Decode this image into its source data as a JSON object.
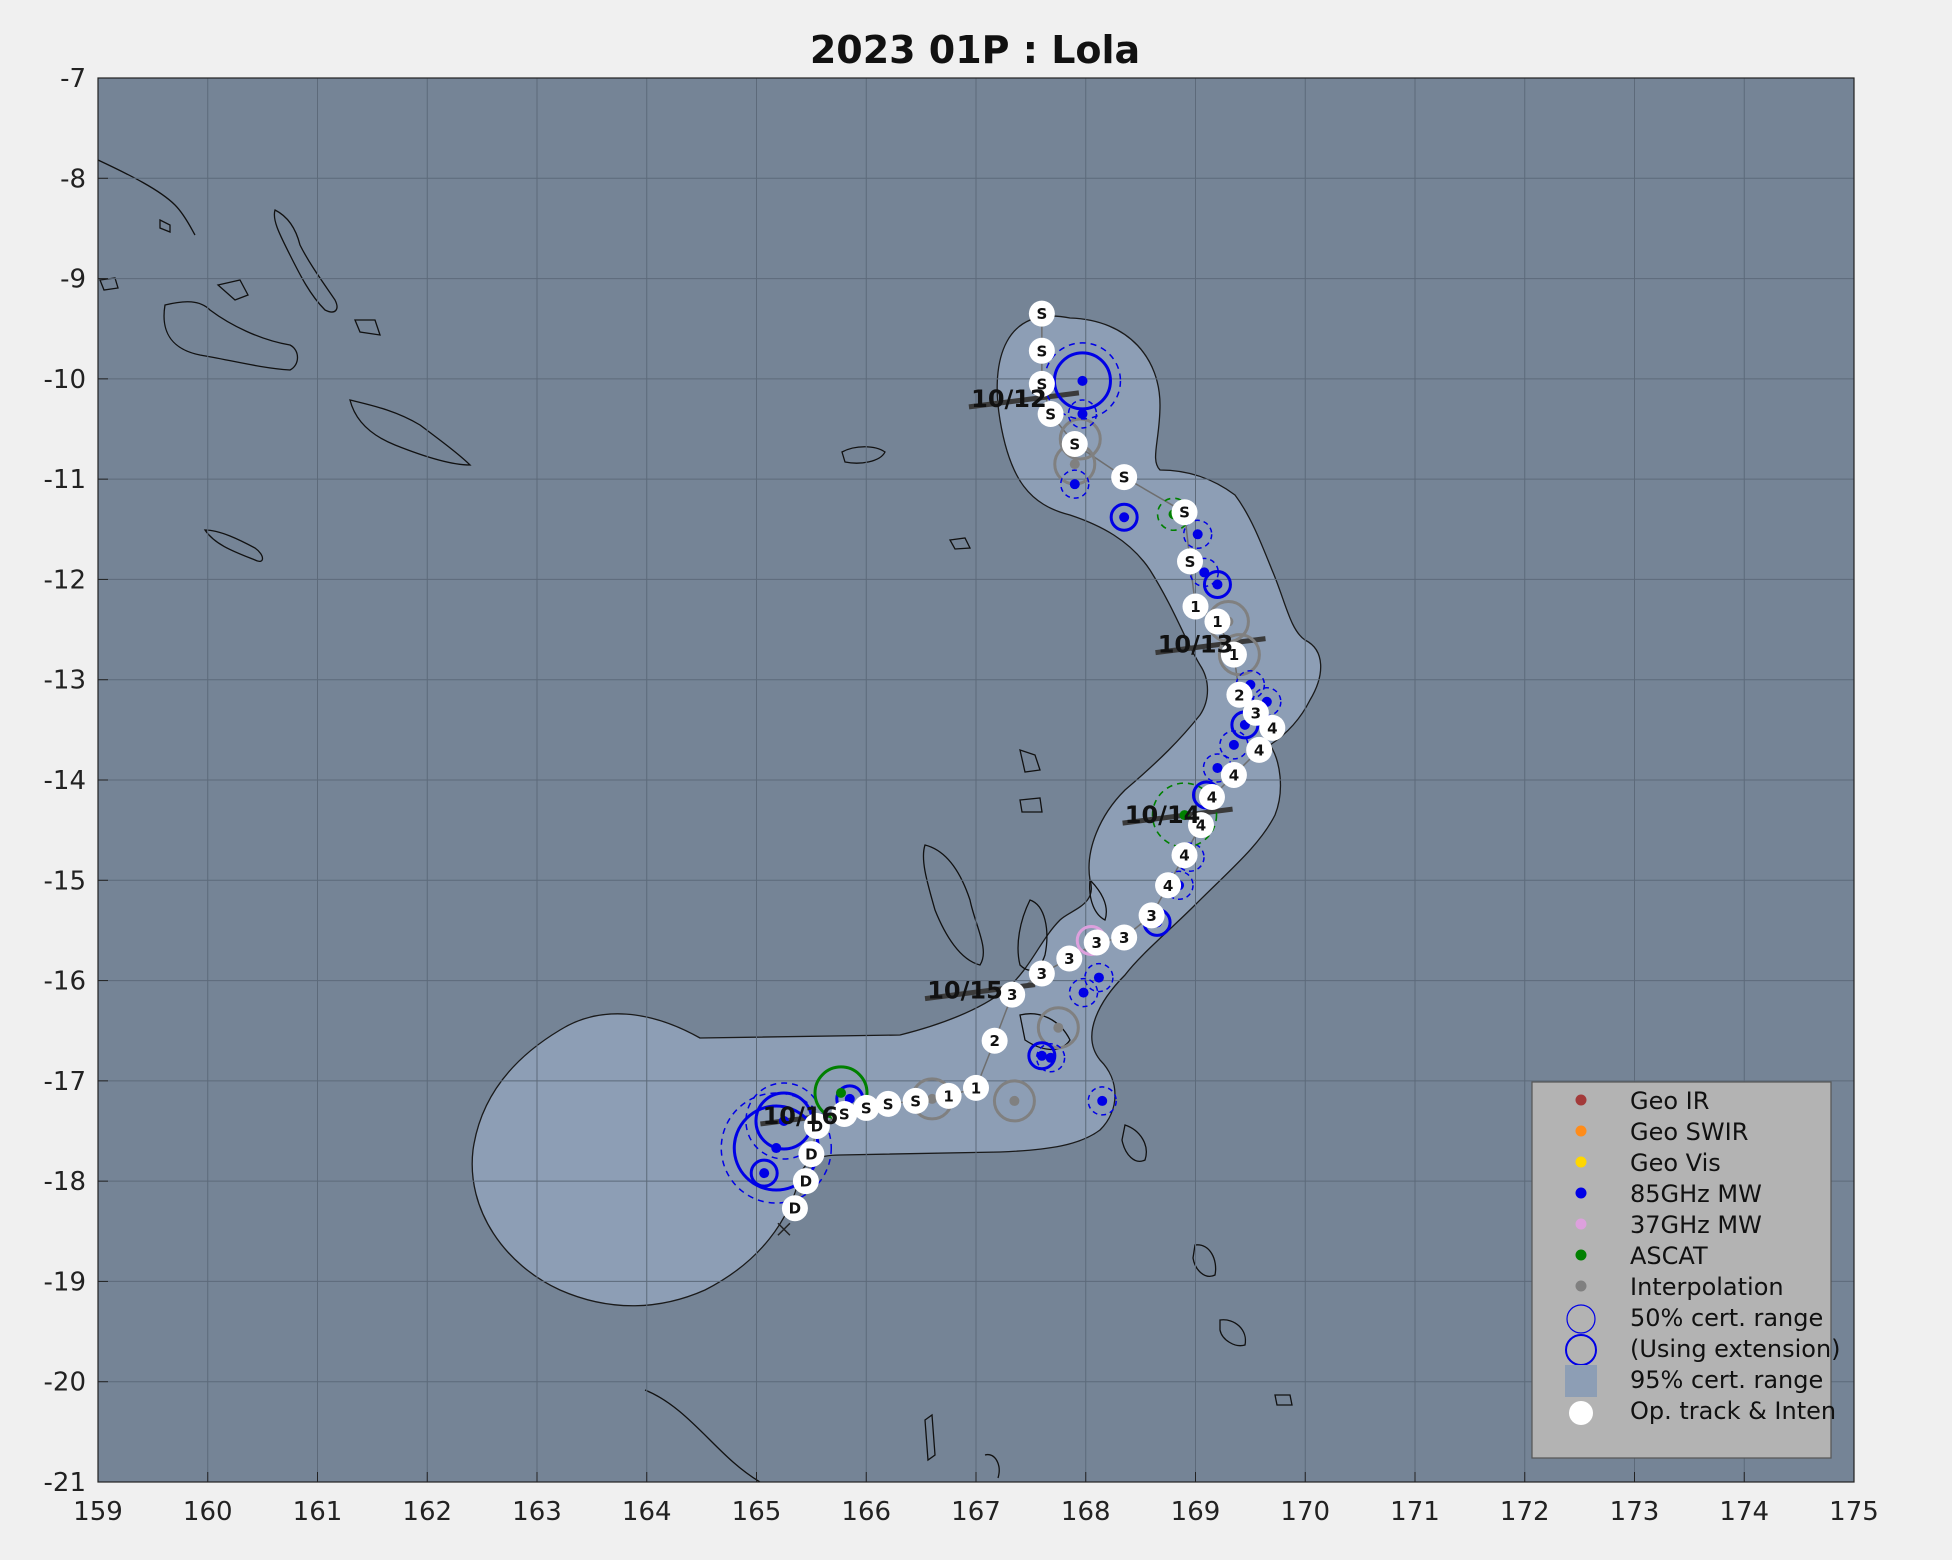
{
  "title": "2023  01P :  Lola",
  "colors": {
    "background": "#f0f0f0",
    "ocean": "#758496",
    "cert95": "#8d9eb5",
    "geo_ir": "#a33a3a",
    "geo_swir": "#ff8c1a",
    "geo_vis": "#ffd700",
    "mw85": "#0000e6",
    "mw37": "#dda0dd",
    "ascat": "#008000",
    "interp": "#808080",
    "legend_bg": "#b3b3b3"
  },
  "axes": {
    "x_ticks": [
      "159",
      "160",
      "161",
      "162",
      "163",
      "164",
      "165",
      "166",
      "167",
      "168",
      "169",
      "170",
      "171",
      "172",
      "173",
      "174",
      "175"
    ],
    "y_ticks": [
      "-7",
      "-8",
      "-9",
      "-10",
      "-11",
      "-12",
      "-13",
      "-14",
      "-15",
      "-16",
      "-17",
      "-18",
      "-19",
      "-20",
      "-21"
    ]
  },
  "chart_data": {
    "type": "scatter",
    "title": "2023  01P :  Lola",
    "xlim": [
      159,
      175
    ],
    "ylim": [
      -21,
      -7
    ],
    "grid": true,
    "legend_position": "bottom-right",
    "op_track": [
      {
        "lon": 167.6,
        "lat": -9.35,
        "label": "S"
      },
      {
        "lon": 167.6,
        "lat": -9.72,
        "label": "S"
      },
      {
        "lon": 167.6,
        "lat": -10.05,
        "label": "S"
      },
      {
        "lon": 167.68,
        "lat": -10.35,
        "label": "S"
      },
      {
        "lon": 167.9,
        "lat": -10.65,
        "label": "S"
      },
      {
        "lon": 168.35,
        "lat": -10.98,
        "label": "S"
      },
      {
        "lon": 168.9,
        "lat": -11.33,
        "label": "S"
      },
      {
        "lon": 168.95,
        "lat": -11.82,
        "label": "S"
      },
      {
        "lon": 169.0,
        "lat": -12.27,
        "label": "1"
      },
      {
        "lon": 169.2,
        "lat": -12.42,
        "label": "1"
      },
      {
        "lon": 169.35,
        "lat": -12.75,
        "label": "1"
      },
      {
        "lon": 169.4,
        "lat": -13.15,
        "label": "2"
      },
      {
        "lon": 169.55,
        "lat": -13.33,
        "label": "3"
      },
      {
        "lon": 169.7,
        "lat": -13.48,
        "label": "4"
      },
      {
        "lon": 169.58,
        "lat": -13.7,
        "label": "4"
      },
      {
        "lon": 169.35,
        "lat": -13.95,
        "label": "4"
      },
      {
        "lon": 169.15,
        "lat": -14.17,
        "label": "4"
      },
      {
        "lon": 169.05,
        "lat": -14.45,
        "label": "4"
      },
      {
        "lon": 168.9,
        "lat": -14.75,
        "label": "4"
      },
      {
        "lon": 168.75,
        "lat": -15.05,
        "label": "4"
      },
      {
        "lon": 168.6,
        "lat": -15.35,
        "label": "3"
      },
      {
        "lon": 168.35,
        "lat": -15.57,
        "label": "3"
      },
      {
        "lon": 168.1,
        "lat": -15.62,
        "label": "3"
      },
      {
        "lon": 167.85,
        "lat": -15.78,
        "label": "3"
      },
      {
        "lon": 167.6,
        "lat": -15.93,
        "label": "3"
      },
      {
        "lon": 167.33,
        "lat": -16.14,
        "label": "3"
      },
      {
        "lon": 167.17,
        "lat": -16.6,
        "label": "2"
      },
      {
        "lon": 167.0,
        "lat": -17.07,
        "label": "1"
      },
      {
        "lon": 166.75,
        "lat": -17.15,
        "label": "1"
      },
      {
        "lon": 166.45,
        "lat": -17.2,
        "label": "S"
      },
      {
        "lon": 166.2,
        "lat": -17.23,
        "label": "S"
      },
      {
        "lon": 166.0,
        "lat": -17.27,
        "label": "S"
      },
      {
        "lon": 165.8,
        "lat": -17.33,
        "label": "S"
      },
      {
        "lon": 165.55,
        "lat": -17.45,
        "label": "D"
      },
      {
        "lon": 165.5,
        "lat": -17.73,
        "label": "D"
      },
      {
        "lon": 165.45,
        "lat": -18.0,
        "label": "D"
      },
      {
        "lon": 165.35,
        "lat": -18.27,
        "label": "D"
      }
    ],
    "fixes_85ghz": [
      {
        "lon": 167.97,
        "lat": -10.02
      },
      {
        "lon": 167.97,
        "lat": -10.35
      },
      {
        "lon": 167.9,
        "lat": -11.05
      },
      {
        "lon": 168.35,
        "lat": -11.38
      },
      {
        "lon": 169.02,
        "lat": -11.55
      },
      {
        "lon": 169.08,
        "lat": -11.93
      },
      {
        "lon": 169.2,
        "lat": -12.05
      },
      {
        "lon": 169.5,
        "lat": -13.05
      },
      {
        "lon": 169.65,
        "lat": -13.22
      },
      {
        "lon": 169.45,
        "lat": -13.45
      },
      {
        "lon": 169.35,
        "lat": -13.65
      },
      {
        "lon": 169.2,
        "lat": -13.88
      },
      {
        "lon": 169.1,
        "lat": -14.15
      },
      {
        "lon": 168.95,
        "lat": -14.77
      },
      {
        "lon": 168.85,
        "lat": -15.05
      },
      {
        "lon": 168.65,
        "lat": -15.42
      },
      {
        "lon": 168.12,
        "lat": -15.97
      },
      {
        "lon": 167.98,
        "lat": -16.12
      },
      {
        "lon": 167.6,
        "lat": -16.75
      },
      {
        "lon": 167.68,
        "lat": -16.77
      },
      {
        "lon": 168.15,
        "lat": -17.2
      },
      {
        "lon": 165.85,
        "lat": -17.18
      },
      {
        "lon": 165.25,
        "lat": -17.4
      },
      {
        "lon": 165.18,
        "lat": -17.67
      },
      {
        "lon": 165.07,
        "lat": -17.92
      }
    ],
    "fixes_37ghz": [
      {
        "lon": 168.05,
        "lat": -15.6
      }
    ],
    "fixes_ascat": [
      {
        "lon": 168.8,
        "lat": -11.35
      },
      {
        "lon": 168.9,
        "lat": -14.35
      },
      {
        "lon": 165.77,
        "lat": -17.12
      }
    ],
    "fixes_interp": [
      {
        "lon": 167.95,
        "lat": -10.6
      },
      {
        "lon": 167.9,
        "lat": -10.85
      },
      {
        "lon": 169.3,
        "lat": -12.42
      },
      {
        "lon": 169.4,
        "lat": -12.75
      },
      {
        "lon": 167.75,
        "lat": -16.47
      },
      {
        "lon": 166.6,
        "lat": -17.18
      },
      {
        "lon": 167.35,
        "lat": -17.2
      }
    ],
    "date_labels": [
      {
        "lon": 167.3,
        "lat": -10.2,
        "text": "10/12"
      },
      {
        "lon": 169.0,
        "lat": -12.65,
        "text": "10/13"
      },
      {
        "lon": 168.7,
        "lat": -14.35,
        "text": "10/14"
      },
      {
        "lon": 166.9,
        "lat": -16.1,
        "text": "10/15"
      },
      {
        "lon": 165.4,
        "lat": -17.35,
        "text": "10/16"
      }
    ],
    "final_position_marker": {
      "lon": 165.25,
      "lat": -18.48,
      "symbol": "x"
    },
    "legend": [
      {
        "label": "Geo IR",
        "kind": "dot",
        "color": "#a33a3a"
      },
      {
        "label": "Geo SWIR",
        "kind": "dot",
        "color": "#ff8c1a"
      },
      {
        "label": "Geo Vis",
        "kind": "dot",
        "color": "#ffd700"
      },
      {
        "label": "85GHz MW",
        "kind": "dot",
        "color": "#0000e6"
      },
      {
        "label": "37GHz MW",
        "kind": "dot",
        "color": "#dda0dd"
      },
      {
        "label": "ASCAT",
        "kind": "dot",
        "color": "#008000"
      },
      {
        "label": "Interpolation",
        "kind": "dot",
        "color": "#808080"
      },
      {
        "label": "50% cert. range",
        "kind": "ring-thin",
        "color": "#0000e6"
      },
      {
        "label": "(Using extension)",
        "kind": "ring-thick",
        "color": "#0000e6"
      },
      {
        "label": "95% cert. range",
        "kind": "square",
        "color": "#8d9eb5"
      },
      {
        "label": "Op. track & Inten",
        "kind": "white-dot",
        "color": "#ffffff"
      }
    ]
  }
}
